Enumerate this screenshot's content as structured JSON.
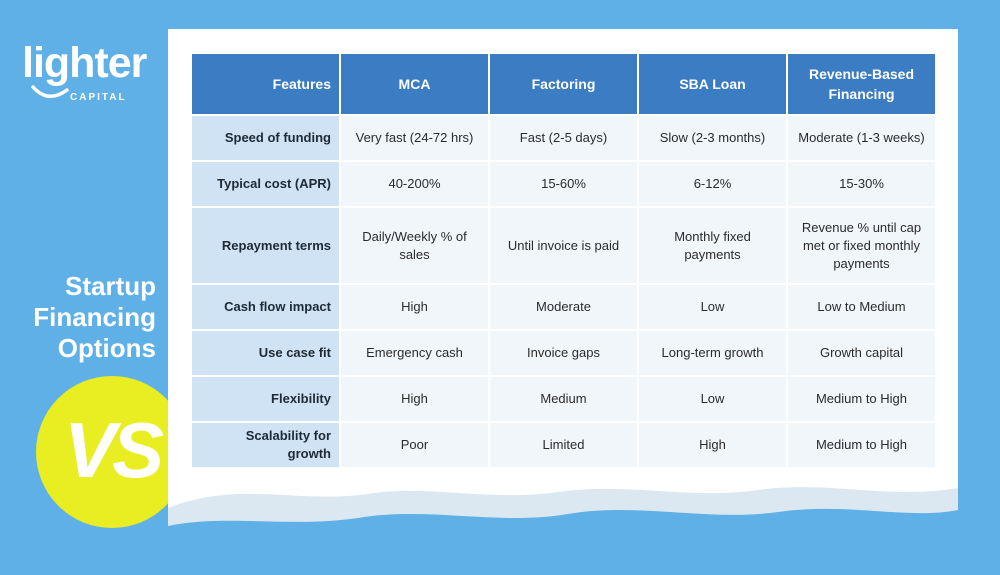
{
  "brand": {
    "logo_word": "lighter",
    "logo_sub": "CAPITAL",
    "background_color": "#5fb0e6",
    "header_color": "#3b7cc2",
    "feature_cell_color": "#cfe3f4",
    "badge_color": "#e8ee22"
  },
  "headline": {
    "line1": "Startup",
    "line2": "Financing",
    "line3": "Options"
  },
  "badge": {
    "text": "VS"
  },
  "table": {
    "headers": [
      "Features",
      "MCA",
      "Factoring",
      "SBA Loan",
      "Revenue-Based Financing"
    ],
    "rows": [
      {
        "feature": "Speed of funding",
        "values": [
          "Very fast (24-72 hrs)",
          "Fast (2-5 days)",
          "Slow (2-3 months)",
          "Moderate (1-3 weeks)"
        ]
      },
      {
        "feature": "Typical cost (APR)",
        "values": [
          "40-200%",
          "15-60%",
          "6-12%",
          "15-30%"
        ]
      },
      {
        "feature": "Repayment terms",
        "values": [
          "Daily/Weekly % of sales",
          "Until invoice is paid",
          "Monthly fixed payments",
          "Revenue % until cap met or fixed monthly payments"
        ]
      },
      {
        "feature": "Cash flow impact",
        "values": [
          "High",
          "Moderate",
          "Low",
          "Low to Medium"
        ]
      },
      {
        "feature": "Use case fit",
        "values": [
          "Emergency cash",
          "Invoice gaps",
          "Long-term growth",
          "Growth capital"
        ]
      },
      {
        "feature": "Flexibility",
        "values": [
          "High",
          "Medium",
          "Low",
          "Medium to High"
        ]
      },
      {
        "feature": "Scalability for growth",
        "values": [
          "Poor",
          "Limited",
          "High",
          "Medium to High"
        ]
      }
    ]
  }
}
